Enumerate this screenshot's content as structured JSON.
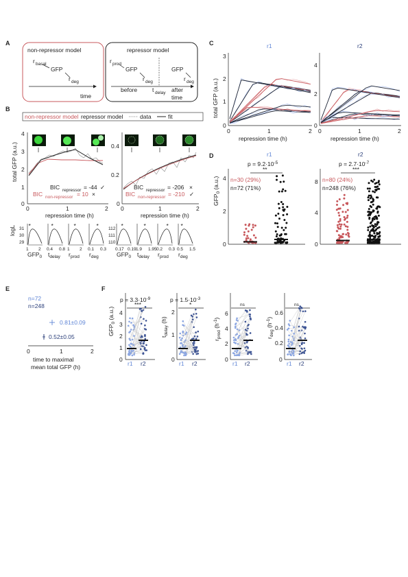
{
  "panels": {
    "A": {
      "label": "A",
      "nonrep": {
        "title": "non-repressor model",
        "rbasal": "r",
        "rbasal_sub": "basal",
        "gfp": "GFP",
        "rdeg": "r",
        "rdeg_sub": "deg",
        "time": "time"
      },
      "rep": {
        "title": "repressor model",
        "rprod": "r",
        "rprod_sub": "prod",
        "gfp1": "GFP",
        "rdeg1": "r",
        "rdeg1_sub": "deg",
        "gfp2": "GFP",
        "rdeg2": "r",
        "rdeg2_sub": "deg",
        "before": "before",
        "tdelay": "t",
        "tdelay_sub": "delay",
        "after": "after",
        "time": "time"
      },
      "colors": {
        "nonrep_border": "#c8585c",
        "rep_border": "#222222"
      }
    },
    "B": {
      "label": "B",
      "legend": {
        "nonrep": "non-repressor model",
        "rep": "repressor model",
        "data": "data",
        "fit": "fit",
        "dash": "----",
        "line": "—"
      },
      "ylabel": "total GFP (a.u.)",
      "xlabel": "repression time (h)",
      "left": {
        "yticks": [
          "4",
          "3",
          "2",
          "1",
          "0"
        ],
        "xticks": [
          "0",
          "1",
          "2"
        ],
        "bic1": "BIC",
        "bic1_sub": "repressor",
        "bic1_val": "= -44",
        "bic1_mark": "✓",
        "bic2": "BIC",
        "bic2_sub": "non-repressor",
        "bic2_val": "= 10",
        "bic2_mark": "×"
      },
      "right": {
        "yticks": [
          "0.4",
          "0.2",
          "0"
        ],
        "xticks": [
          "0",
          "1",
          "2"
        ],
        "bic1": "BIC",
        "bic1_sub": "repressor",
        "bic1_val": "= -206",
        "bic1_mark": "×",
        "bic2": "BIC",
        "bic2_sub": "non-repressor",
        "bic2_val": "= -210",
        "bic2_mark": "✓"
      },
      "logl": {
        "ylabel": "logL",
        "left_yticks": [
          "31",
          "30",
          "29"
        ],
        "right_yticks": [
          "112",
          "111",
          "110"
        ],
        "params": [
          "GFP",
          "t",
          "r",
          "r"
        ],
        "param_subs": [
          "0",
          "delay",
          "prod",
          "deg"
        ],
        "left_xticks": [
          [
            "1",
            "2"
          ],
          [
            "0.4",
            "0.8"
          ],
          [
            "1",
            "2"
          ],
          [
            "0.1",
            "0.3"
          ]
        ],
        "right_xticks": [
          [
            "0.17",
            "0.19"
          ],
          [
            "1.9",
            "1.95"
          ],
          [
            "0.2",
            "0.3"
          ],
          [
            "0.5",
            "1.5"
          ]
        ]
      }
    },
    "C": {
      "label": "C",
      "ylabel": "total GFP (a.u.)",
      "xlabel": "repression time (h)",
      "r1": {
        "title": "r1",
        "yticks": [
          "3",
          "2",
          "1",
          "0"
        ],
        "xticks": [
          "0",
          "1",
          "2"
        ]
      },
      "r2": {
        "title": "r2",
        "yticks": [
          "4",
          "2",
          "0"
        ],
        "xticks": [
          "0",
          "1",
          "2"
        ]
      }
    },
    "D": {
      "label": "D",
      "ylabel": "GFP",
      "ylabel_sub": "0",
      "ylabel_unit": " (a.u.)",
      "r1": {
        "title": "r1",
        "pval": "p = 9.2·10",
        "pexp": "-5",
        "stars": "**",
        "nred": "n=30 (29%)",
        "nblack": "n=72 (71%)",
        "yticks": [
          "4",
          "2",
          "0"
        ]
      },
      "r2": {
        "title": "r2",
        "pval": "p = 2.7·10",
        "pexp": "-7",
        "stars": "***",
        "nred": "n=80 (24%)",
        "nblack": "n=248 (76%)",
        "yticks": [
          "8",
          "4",
          "0"
        ]
      }
    },
    "E": {
      "label": "E",
      "n1": "n=72",
      "n2": "n=248",
      "v1": "0.81±0.09",
      "v2": "0.52±0.05",
      "xticks": [
        "0",
        "1",
        "2"
      ],
      "xlabel1": "time to maximal",
      "xlabel2": "mean total GFP (h)"
    },
    "F": {
      "label": "F",
      "cats": [
        "r1",
        "r2"
      ],
      "gfp0": {
        "ylabel": "GFP",
        "sub": "0",
        "unit": " (a.u.)",
        "pval": "p = 3.3·10",
        "pexp": "-9",
        "stars": "***",
        "yticks": [
          "4",
          "3",
          "2",
          "1",
          "0"
        ]
      },
      "tdelay": {
        "ylabel": "t",
        "sub": "delay",
        "unit": " (h)",
        "pval": "p = 1.5·10",
        "pexp": "-3",
        "stars": "*",
        "yticks": [
          "2",
          "1",
          "0"
        ]
      },
      "rprod": {
        "ylabel": "r",
        "sub": "prod",
        "unit": " (h",
        "unit_exp": "-1",
        "unit_end": ")",
        "stars": "ns",
        "yticks": [
          "6",
          "4",
          "2",
          "0"
        ]
      },
      "rdeg": {
        "ylabel": "r",
        "sub": "deg",
        "unit": " (h",
        "unit_exp": "-1",
        "unit_end": ")",
        "stars": "ns",
        "yticks": [
          "0.6",
          "0.4",
          "0.2",
          "0"
        ]
      }
    }
  },
  "colors": {
    "red": "#c8585c",
    "blue": "#5f85d6",
    "navy": "#2b3f7a",
    "light_blue": "#9db4e6",
    "grey": "#b0b0b0"
  }
}
